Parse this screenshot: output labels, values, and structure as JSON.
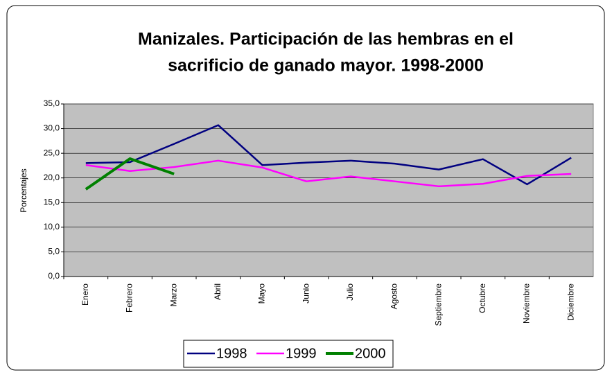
{
  "chart_data": {
    "type": "line",
    "title": [
      "Manizales. Participación de las hembras en el",
      "sacrificio de ganado mayor. 1998-2000"
    ],
    "y_label": "Porcentajes",
    "categories": [
      "Enero",
      "Febrero",
      "Marzo",
      "Abril",
      "Mayo",
      "Junio",
      "Julio",
      "Agosto",
      "Septiembre",
      "Octubre",
      "Noviembre",
      "Diciembre"
    ],
    "series": [
      {
        "name": "1998",
        "color": "#000080",
        "values": [
          23.0,
          23.2,
          26.9,
          30.7,
          22.6,
          23.1,
          23.5,
          22.9,
          21.7,
          23.8,
          18.7,
          24.1
        ]
      },
      {
        "name": "1999",
        "color": "#ff00ff",
        "values": [
          22.6,
          21.4,
          22.2,
          23.5,
          22.1,
          19.3,
          20.3,
          19.3,
          18.3,
          18.8,
          20.4,
          20.8
        ]
      },
      {
        "name": "2000",
        "color": "#008000",
        "values": [
          17.7,
          23.9,
          20.8,
          null,
          null,
          null,
          null,
          null,
          null,
          null,
          null,
          null
        ]
      }
    ],
    "ylim": [
      0,
      35
    ],
    "yticks": [
      {
        "value": 0,
        "label": "0,0"
      },
      {
        "value": 5,
        "label": "5,0"
      },
      {
        "value": 10,
        "label": "10,0"
      },
      {
        "value": 15,
        "label": "15,0"
      },
      {
        "value": 20,
        "label": "20,0"
      },
      {
        "value": 25,
        "label": "25,0"
      },
      {
        "value": 30,
        "label": "30,0"
      },
      {
        "value": 35,
        "label": "35,0"
      }
    ],
    "grid": true,
    "legend": "bottom"
  }
}
